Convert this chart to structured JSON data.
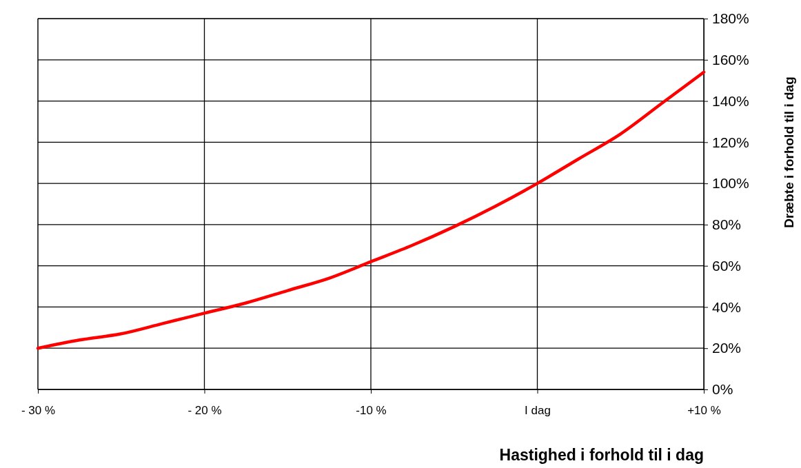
{
  "chart_data": {
    "type": "line",
    "xlabel": "Hastighed i forhold til i dag",
    "ylabel": "Dræbte i forhold til i dag",
    "x": [
      -30,
      -27.5,
      -25,
      -22.5,
      -20,
      -17.5,
      -15,
      -12.5,
      -10,
      -7.5,
      -5,
      -2.5,
      0,
      2.5,
      5,
      7.5,
      10
    ],
    "series": [
      {
        "color": "#ff0000",
        "values": [
          20,
          24,
          27,
          32,
          37,
          42,
          48,
          54,
          62,
          70,
          79,
          89,
          100,
          112,
          124,
          139,
          154
        ]
      }
    ],
    "xlim": [
      -30,
      10
    ],
    "xticks": [
      {
        "value": -30,
        "label": "- 30 %"
      },
      {
        "value": -20,
        "label": "- 20 %"
      },
      {
        "value": -10,
        "label": "-10 %"
      },
      {
        "value": 0,
        "label": "I dag"
      },
      {
        "value": 10,
        "label": "+10 %"
      }
    ],
    "ylim": [
      0,
      180
    ],
    "yticks": [
      {
        "value": 0,
        "label": "0%"
      },
      {
        "value": 20,
        "label": "20%"
      },
      {
        "value": 40,
        "label": "40%"
      },
      {
        "value": 60,
        "label": "60%"
      },
      {
        "value": 80,
        "label": "80%"
      },
      {
        "value": 100,
        "label": "100%"
      },
      {
        "value": 120,
        "label": "120%"
      },
      {
        "value": 140,
        "label": "140%"
      },
      {
        "value": 160,
        "label": "160%"
      },
      {
        "value": 180,
        "label": "180%"
      }
    ],
    "grid": true,
    "marker": "none",
    "line_style": "solid"
  }
}
